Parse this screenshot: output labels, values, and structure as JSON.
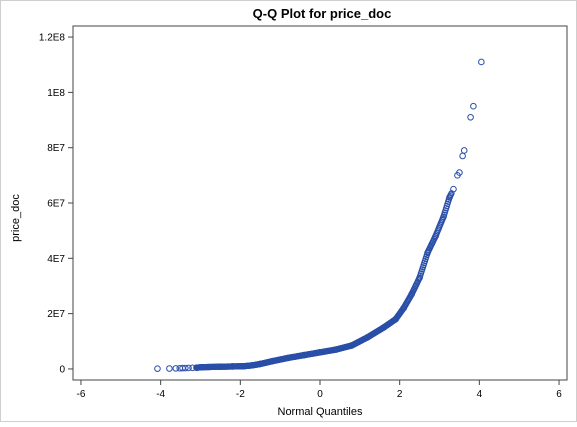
{
  "chart_data": {
    "type": "scatter",
    "title": "Q-Q Plot for price_doc",
    "xlabel": "Normal Quantiles",
    "ylabel": "price_doc",
    "xlim": [
      -6.2,
      6.2
    ],
    "ylim": [
      -4000000,
      124000000
    ],
    "x_ticks": [
      {
        "value": -6,
        "label": "-6"
      },
      {
        "value": -4,
        "label": "-4"
      },
      {
        "value": -2,
        "label": "-2"
      },
      {
        "value": 0,
        "label": "0"
      },
      {
        "value": 2,
        "label": "2"
      },
      {
        "value": 4,
        "label": "4"
      },
      {
        "value": 6,
        "label": "6"
      }
    ],
    "y_ticks": [
      {
        "value": 0,
        "label": "0"
      },
      {
        "value": 20000000,
        "label": "2E7"
      },
      {
        "value": 40000000,
        "label": "4E7"
      },
      {
        "value": 60000000,
        "label": "6E7"
      },
      {
        "value": 80000000,
        "label": "8E7"
      },
      {
        "value": 100000000,
        "label": "1E8"
      },
      {
        "value": 120000000,
        "label": "1.2E8"
      }
    ],
    "grid": false,
    "legend": "none",
    "marker": {
      "shape": "open-circle",
      "color": "#2a4fa8"
    },
    "points": [
      {
        "x": -4.08,
        "y": 100000
      },
      {
        "x": -3.78,
        "y": 150000
      },
      {
        "x": -3.62,
        "y": 200000
      },
      {
        "x": -3.52,
        "y": 250000
      },
      {
        "x": -3.45,
        "y": 300000
      },
      {
        "x": -3.38,
        "y": 320000
      },
      {
        "x": -3.3,
        "y": 350000
      },
      {
        "x": -3.2,
        "y": 400000
      },
      {
        "x": -3.1,
        "y": 450000
      },
      {
        "x": -3.0,
        "y": 600000
      },
      {
        "x": -2.8,
        "y": 700000
      },
      {
        "x": -2.5,
        "y": 800000
      },
      {
        "x": -2.2,
        "y": 900000
      },
      {
        "x": -1.9,
        "y": 1000000
      },
      {
        "x": -1.7,
        "y": 1300000
      },
      {
        "x": -1.5,
        "y": 1800000
      },
      {
        "x": -1.2,
        "y": 2800000
      },
      {
        "x": -0.8,
        "y": 4000000
      },
      {
        "x": -0.4,
        "y": 5000000
      },
      {
        "x": 0.0,
        "y": 6000000
      },
      {
        "x": 0.4,
        "y": 7000000
      },
      {
        "x": 0.8,
        "y": 8500000
      },
      {
        "x": 1.2,
        "y": 11500000
      },
      {
        "x": 1.6,
        "y": 15000000
      },
      {
        "x": 1.9,
        "y": 18000000
      },
      {
        "x": 2.1,
        "y": 22000000
      },
      {
        "x": 2.3,
        "y": 27000000
      },
      {
        "x": 2.5,
        "y": 33000000
      },
      {
        "x": 2.7,
        "y": 42000000
      },
      {
        "x": 2.9,
        "y": 48000000
      },
      {
        "x": 3.1,
        "y": 55000000
      },
      {
        "x": 3.25,
        "y": 62000000
      },
      {
        "x": 3.35,
        "y": 65000000
      },
      {
        "x": 3.45,
        "y": 70000000
      },
      {
        "x": 3.5,
        "y": 71000000
      },
      {
        "x": 3.58,
        "y": 77000000
      },
      {
        "x": 3.62,
        "y": 79000000
      },
      {
        "x": 3.78,
        "y": 91000000
      },
      {
        "x": 3.85,
        "y": 95000000
      },
      {
        "x": 4.05,
        "y": 111000000
      }
    ]
  }
}
